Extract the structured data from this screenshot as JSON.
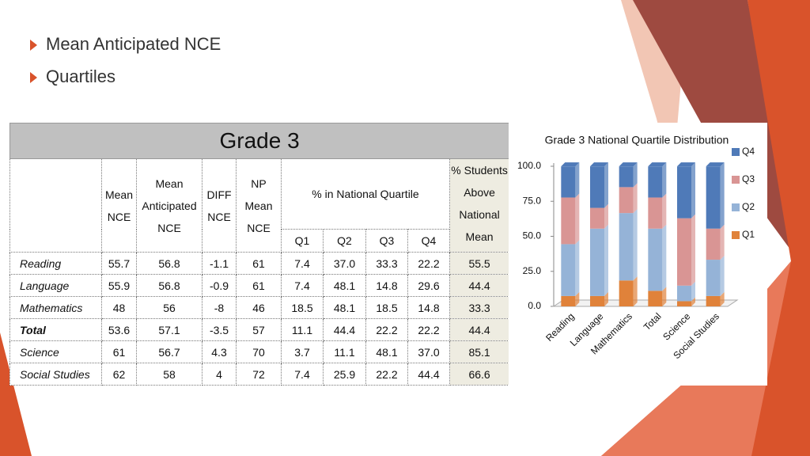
{
  "bullets": [
    "Mean Anticipated NCE",
    "Quartiles"
  ],
  "table": {
    "title": "Grade 3",
    "columns": [
      "Mean NCE",
      "Mean Anticipated NCE",
      "DIFF NCE",
      "NP Mean NCE"
    ],
    "quartile_group": "% in National Quartile",
    "quartiles": [
      "Q1",
      "Q2",
      "Q3",
      "Q4"
    ],
    "last_column": "% Students Above National Mean",
    "rows": [
      [
        "Reading",
        "55.7",
        "56.8",
        "-1.1",
        "61",
        "7.4",
        "37.0",
        "33.3",
        "22.2",
        "55.5"
      ],
      [
        "Language",
        "55.9",
        "56.8",
        "-0.9",
        "61",
        "7.4",
        "48.1",
        "14.8",
        "29.6",
        "44.4"
      ],
      [
        "Mathematics",
        "48",
        "56",
        "-8",
        "46",
        "18.5",
        "48.1",
        "18.5",
        "14.8",
        "33.3"
      ],
      [
        "Total",
        "53.6",
        "57.1",
        "-3.5",
        "57",
        "11.1",
        "44.4",
        "22.2",
        "22.2",
        "44.4"
      ],
      [
        "Science",
        "61",
        "56.7",
        "4.3",
        "70",
        "3.7",
        "11.1",
        "48.1",
        "37.0",
        "85.1"
      ],
      [
        "Social Studies",
        "62",
        "58",
        "4",
        "72",
        "7.4",
        "25.9",
        "22.2",
        "44.4",
        "66.6"
      ]
    ]
  },
  "chart_data": {
    "type": "stacked_bar",
    "title": "Grade 3 National Quartile Distribution",
    "categories": [
      "Reading",
      "Language",
      "Mathematics",
      "Total",
      "Science",
      "Social Studies"
    ],
    "series": [
      {
        "name": "Q1",
        "color": "#e0823a",
        "values": [
          7.4,
          7.4,
          18.5,
          11.1,
          3.7,
          7.4
        ]
      },
      {
        "name": "Q2",
        "color": "#95b3d7",
        "values": [
          37.0,
          48.1,
          48.1,
          44.4,
          11.1,
          25.9
        ]
      },
      {
        "name": "Q3",
        "color": "#d99594",
        "values": [
          33.3,
          14.8,
          18.5,
          22.2,
          48.1,
          22.2
        ]
      },
      {
        "name": "Q4",
        "color": "#4f7ab8",
        "values": [
          22.2,
          29.6,
          14.8,
          22.2,
          37.0,
          44.4
        ]
      }
    ],
    "ylim": [
      0,
      100
    ],
    "yticks": [
      {
        "value": 0,
        "label": "0.0"
      },
      {
        "value": 25,
        "label": "25.0"
      },
      {
        "value": 50,
        "label": "50.0"
      },
      {
        "value": 75,
        "label": "75.0"
      },
      {
        "value": 100,
        "label": "100.0"
      }
    ],
    "grid": false,
    "legend": "right"
  }
}
